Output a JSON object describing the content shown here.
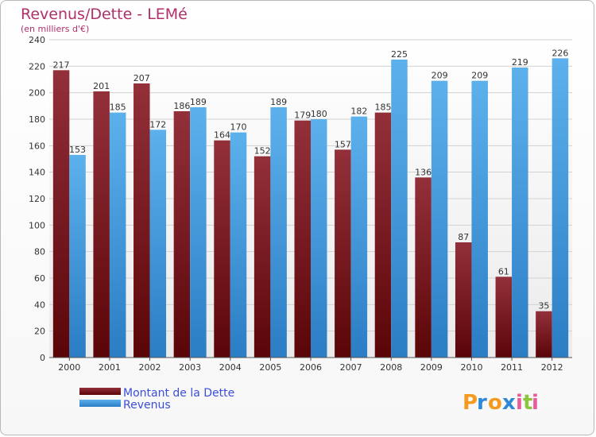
{
  "chart_data": {
    "type": "bar",
    "title": "Revenus/Dette - LEMé",
    "subtitle": "(en milliers d'€)",
    "categories": [
      "2000",
      "2001",
      "2002",
      "2003",
      "2004",
      "2005",
      "2006",
      "2007",
      "2008",
      "2009",
      "2010",
      "2011",
      "2012"
    ],
    "series": [
      {
        "name": "Montant de la Dette",
        "color": "#7a1a1f",
        "values": [
          217,
          201,
          207,
          186,
          164,
          152,
          179,
          157,
          185,
          136,
          87,
          61,
          35
        ]
      },
      {
        "name": "Revenus",
        "color": "#4a9de0",
        "values": [
          153,
          185,
          172,
          189,
          170,
          189,
          180,
          182,
          225,
          209,
          209,
          219,
          226
        ]
      }
    ],
    "ylim": [
      0,
      240
    ],
    "yticks": [
      0,
      20,
      40,
      60,
      80,
      100,
      120,
      140,
      160,
      180,
      200,
      220,
      240
    ],
    "grid": true,
    "legend": "bottom-left"
  },
  "brand": {
    "letters": [
      "P",
      "r",
      "o",
      "x",
      "i",
      "t",
      "i"
    ],
    "colors": [
      "#f39a1f",
      "#2f88d6",
      "#f39a1f",
      "#2f88d6",
      "#e85a9a",
      "#8cc63f",
      "#e85a9a"
    ]
  }
}
